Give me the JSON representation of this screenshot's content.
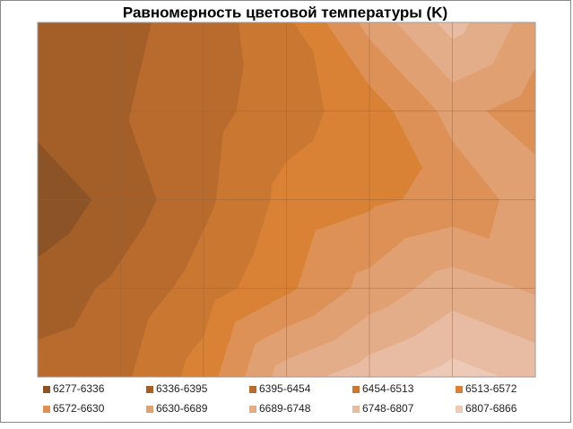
{
  "chart_data": {
    "type": "contour",
    "title": "Равномерность цветовой температуры (K)",
    "z": [
      [
        6370,
        6380,
        6420,
        6500,
        6650,
        6770,
        6660
      ],
      [
        6360,
        6390,
        6430,
        6490,
        6540,
        6650,
        6600
      ],
      [
        6290,
        6360,
        6440,
        6530,
        6560,
        6590,
        6660
      ],
      [
        6360,
        6410,
        6480,
        6560,
        6650,
        6720,
        6680
      ],
      [
        6420,
        6440,
        6540,
        6720,
        6780,
        6830,
        6790
      ]
    ],
    "bands": [
      {
        "name": "6277-6336",
        "range": [
          6277,
          6336
        ],
        "color": "#8c5326"
      },
      {
        "name": "6336-6395",
        "range": [
          6336,
          6395
        ],
        "color": "#a45f29"
      },
      {
        "name": "6395-6454",
        "range": [
          6395,
          6454
        ],
        "color": "#b96b2e"
      },
      {
        "name": "6454-6513",
        "range": [
          6454,
          6513
        ],
        "color": "#ca7732"
      },
      {
        "name": "6513-6572",
        "range": [
          6513,
          6572
        ],
        "color": "#d98236"
      },
      {
        "name": "6572-6630",
        "range": [
          6572,
          6630
        ],
        "color": "#dd9156"
      },
      {
        "name": "6630-6689",
        "range": [
          6630,
          6689
        ],
        "color": "#e1a072"
      },
      {
        "name": "6689-6748",
        "range": [
          6689,
          6748
        ],
        "color": "#e4ad8a"
      },
      {
        "name": "6748-6807",
        "range": [
          6748,
          6807
        ],
        "color": "#e8bba3"
      },
      {
        "name": "6807-6866",
        "range": [
          6807,
          6866
        ],
        "color": "#edcab8"
      }
    ],
    "grid": true
  }
}
